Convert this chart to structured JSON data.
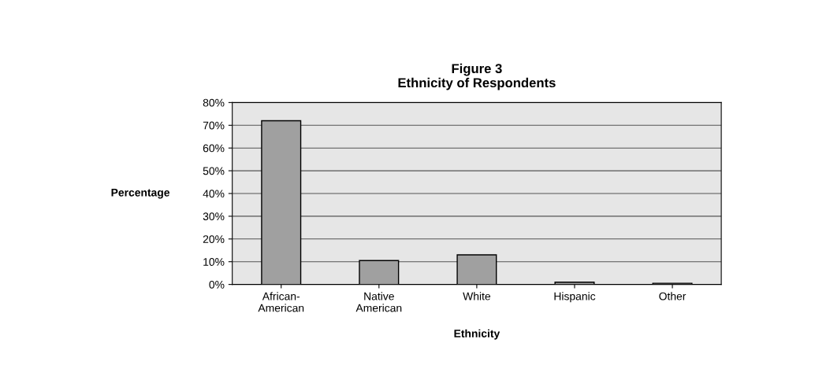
{
  "chart_data": {
    "type": "bar",
    "title": "Figure 3\nEthnicity of Respondents",
    "xlabel": "Ethnicity",
    "ylabel": "Percentage",
    "categories": [
      "African-\nAmerican",
      "Native\nAmerican",
      "White",
      "Hispanic",
      "Other"
    ],
    "values": [
      72,
      10.5,
      13,
      1,
      0.5
    ],
    "color": "#a0a0a0",
    "ylim": [
      0,
      80
    ],
    "yticks": [
      {
        "value": 0,
        "label": "0%"
      },
      {
        "value": 10,
        "label": "10%"
      },
      {
        "value": 20,
        "label": "20%"
      },
      {
        "value": 30,
        "label": "30%"
      },
      {
        "value": 40,
        "label": "40%"
      },
      {
        "value": 50,
        "label": "50%"
      },
      {
        "value": 60,
        "label": "60%"
      },
      {
        "value": 70,
        "label": "70%"
      },
      {
        "value": 80,
        "label": "80%"
      }
    ],
    "grid": "y"
  }
}
